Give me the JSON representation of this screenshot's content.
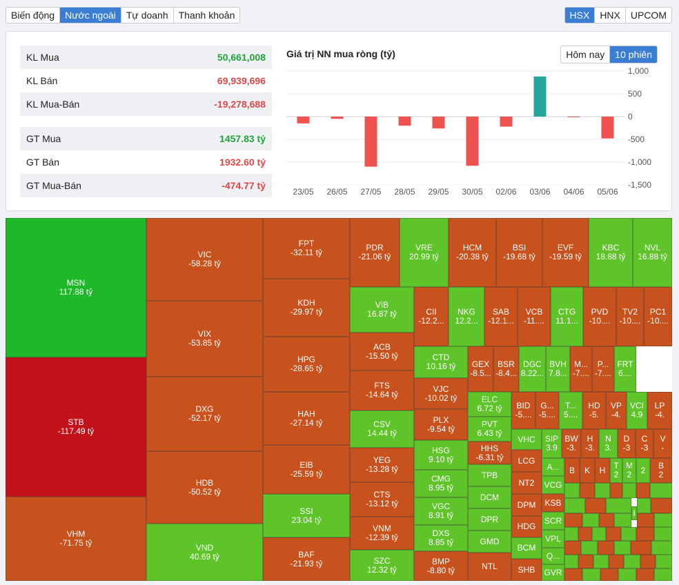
{
  "tabs_left": [
    {
      "label": "Biến động",
      "active": false
    },
    {
      "label": "Nước ngoài",
      "active": true
    },
    {
      "label": "Tự doanh",
      "active": false
    },
    {
      "label": "Thanh khoản",
      "active": false
    }
  ],
  "tabs_right": [
    {
      "label": "HSX",
      "active": true
    },
    {
      "label": "HNX",
      "active": false
    },
    {
      "label": "UPCOM",
      "active": false
    }
  ],
  "stats": [
    {
      "label": "KL Mua",
      "value": "50,661,008",
      "tone": "pos"
    },
    {
      "label": "KL Bán",
      "value": "69,939,696",
      "tone": "neg"
    },
    {
      "label": "KL Mua-Bán",
      "value": "-19,278,688",
      "tone": "neg"
    },
    {
      "label": "GT Mua",
      "value": "1457.83 tỷ",
      "tone": "pos"
    },
    {
      "label": "GT Bán",
      "value": "1932.60 tỷ",
      "tone": "neg"
    },
    {
      "label": "GT Mua-Bán",
      "value": "-474.77 tỷ",
      "tone": "neg"
    }
  ],
  "chart_title": "Giá trị NN mua ròng (tỷ)",
  "range_tabs": [
    {
      "label": "Hôm nay",
      "active": false
    },
    {
      "label": "10 phiên",
      "active": true
    }
  ],
  "colors": {
    "accent": "#3a7ed4",
    "positive_bar": "#26a69a",
    "negative_bar": "#ef5350",
    "up_strong": "#1fb82a",
    "up": "#5fc42a",
    "down": "#c8521e",
    "down_strong": "#c4121b"
  },
  "chart_data": {
    "type": "bar",
    "title": "Giá trị NN mua ròng (tỷ)",
    "categories": [
      "23/05",
      "26/05",
      "27/05",
      "28/05",
      "29/05",
      "30/05",
      "02/06",
      "03/06",
      "04/06",
      "05/06"
    ],
    "values": [
      -150,
      -50,
      -1100,
      -200,
      -260,
      -1080,
      -220,
      880,
      -10,
      -480
    ],
    "yticks": [
      "1,000",
      "500",
      "0",
      "-500",
      "-1,000",
      "-1,500"
    ],
    "ylim": [
      -1500,
      1000
    ],
    "grid": true
  },
  "heatmap_tiles": [
    {
      "sym": "MSN",
      "val": "117.88 tỷ",
      "tone": "up_strong"
    },
    {
      "sym": "STB",
      "val": "-117.49 tỷ",
      "tone": "down_strong"
    },
    {
      "sym": "VHM",
      "val": "-71.75 tỷ",
      "tone": "down"
    },
    {
      "sym": "VIC",
      "val": "-58.28 tỷ",
      "tone": "down"
    },
    {
      "sym": "VIX",
      "val": "-53.85 tỷ",
      "tone": "down"
    },
    {
      "sym": "DXG",
      "val": "-52.17 tỷ",
      "tone": "down"
    },
    {
      "sym": "HDB",
      "val": "-50.52 tỷ",
      "tone": "down"
    },
    {
      "sym": "VND",
      "val": "40.69 tỷ",
      "tone": "up"
    },
    {
      "sym": "FPT",
      "val": "-32.11 tỷ",
      "tone": "down"
    },
    {
      "sym": "KDH",
      "val": "-29.97 tỷ",
      "tone": "down"
    },
    {
      "sym": "HPG",
      "val": "-28.65 tỷ",
      "tone": "down"
    },
    {
      "sym": "HAH",
      "val": "-27.14 tỷ",
      "tone": "down"
    },
    {
      "sym": "EIB",
      "val": "-25.59 tỷ",
      "tone": "down"
    },
    {
      "sym": "SSI",
      "val": "23.04 tỷ",
      "tone": "up"
    },
    {
      "sym": "BAF",
      "val": "-21.93 tỷ",
      "tone": "down"
    },
    {
      "sym": "PDR",
      "val": "-21.06 tỷ",
      "tone": "down"
    },
    {
      "sym": "VRE",
      "val": "20.99 tỷ",
      "tone": "up"
    },
    {
      "sym": "HCM",
      "val": "-20.38 tỷ",
      "tone": "down"
    },
    {
      "sym": "BSI",
      "val": "-19.68 tỷ",
      "tone": "down"
    },
    {
      "sym": "EVF",
      "val": "-19.59 tỷ",
      "tone": "down"
    },
    {
      "sym": "KBC",
      "val": "18.88 tỷ",
      "tone": "up"
    },
    {
      "sym": "NVL",
      "val": "16.88 tỷ",
      "tone": "up"
    },
    {
      "sym": "VIB",
      "val": "16.87 tỷ",
      "tone": "up"
    },
    {
      "sym": "CII",
      "val": "-12.2...",
      "tone": "down"
    },
    {
      "sym": "NKG",
      "val": "12.2...",
      "tone": "up"
    },
    {
      "sym": "SAB",
      "val": "-12.1...",
      "tone": "down"
    },
    {
      "sym": "VCB",
      "val": "-11....",
      "tone": "down"
    },
    {
      "sym": "CTG",
      "val": "11.1...",
      "tone": "up"
    },
    {
      "sym": "PVD",
      "val": "-10....",
      "tone": "down"
    },
    {
      "sym": "TV2",
      "val": "-10....",
      "tone": "down"
    },
    {
      "sym": "PC1",
      "val": "-10....",
      "tone": "down"
    },
    {
      "sym": "ACB",
      "val": "-15.50 tỷ",
      "tone": "down"
    },
    {
      "sym": "FTS",
      "val": "-14.64 tỷ",
      "tone": "down"
    },
    {
      "sym": "CSV",
      "val": "14.44 tỷ",
      "tone": "up"
    },
    {
      "sym": "YEG",
      "val": "-13.28 tỷ",
      "tone": "down"
    },
    {
      "sym": "CTS",
      "val": "-13.12 tỷ",
      "tone": "down"
    },
    {
      "sym": "VNM",
      "val": "-12.39 tỷ",
      "tone": "down"
    },
    {
      "sym": "SZC",
      "val": "12.32 tỷ",
      "tone": "up"
    },
    {
      "sym": "CTD",
      "val": "10.16 tỷ",
      "tone": "up"
    },
    {
      "sym": "VJC",
      "val": "-10.02 tỷ",
      "tone": "down"
    },
    {
      "sym": "PLX",
      "val": "-9.54 tỷ",
      "tone": "down"
    },
    {
      "sym": "HSG",
      "val": "9.10 tỷ",
      "tone": "up"
    },
    {
      "sym": "CMG",
      "val": "8.95 tỷ",
      "tone": "up"
    },
    {
      "sym": "VGC",
      "val": "8.91 tỷ",
      "tone": "up"
    },
    {
      "sym": "DXS",
      "val": "8.85 tỷ",
      "tone": "up"
    },
    {
      "sym": "BMP",
      "val": "-8.80 tỷ",
      "tone": "down"
    },
    {
      "sym": "GEX",
      "val": "-8.5...",
      "tone": "down"
    },
    {
      "sym": "BSR",
      "val": "-8.4...",
      "tone": "down"
    },
    {
      "sym": "DGC",
      "val": "8.22...",
      "tone": "up"
    },
    {
      "sym": "BVH",
      "val": "7.8...",
      "tone": "up"
    },
    {
      "sym": "M...",
      "val": "-7....",
      "tone": "down"
    },
    {
      "sym": "P...",
      "val": "-7....",
      "tone": "down"
    },
    {
      "sym": "FRT",
      "val": "6....",
      "tone": "up"
    },
    {
      "sym": "ELC",
      "val": "6.72 tỷ",
      "tone": "up"
    },
    {
      "sym": "PVT",
      "val": "6.43 tỷ",
      "tone": "up"
    },
    {
      "sym": "HHS",
      "val": "-6.31 tỷ",
      "tone": "down"
    },
    {
      "sym": "TPB",
      "val": "",
      "tone": "up"
    },
    {
      "sym": "DCM",
      "val": "",
      "tone": "up"
    },
    {
      "sym": "DPR",
      "val": "",
      "tone": "up"
    },
    {
      "sym": "GMD",
      "val": "",
      "tone": "up"
    },
    {
      "sym": "NTL",
      "val": "",
      "tone": "down"
    },
    {
      "sym": "BID",
      "val": "-5....",
      "tone": "down"
    },
    {
      "sym": "G...",
      "val": "-5....",
      "tone": "down"
    },
    {
      "sym": "T...",
      "val": "5....",
      "tone": "up"
    },
    {
      "sym": "HD",
      "val": "-5.",
      "tone": "down"
    },
    {
      "sym": "VP",
      "val": "-4.",
      "tone": "down"
    },
    {
      "sym": "VCI",
      "val": "4.9",
      "tone": "up"
    },
    {
      "sym": "LP",
      "val": "-4.",
      "tone": "down"
    },
    {
      "sym": "VHC",
      "val": "",
      "tone": "up"
    },
    {
      "sym": "LCG",
      "val": "",
      "tone": "down"
    },
    {
      "sym": "NT2",
      "val": "",
      "tone": "down"
    },
    {
      "sym": "DPM",
      "val": "",
      "tone": "down"
    },
    {
      "sym": "HDG",
      "val": "",
      "tone": "down"
    },
    {
      "sym": "BCM",
      "val": "",
      "tone": "up"
    },
    {
      "sym": "SHB",
      "val": "",
      "tone": "down"
    },
    {
      "sym": "SIP",
      "val": "3.9",
      "tone": "up"
    },
    {
      "sym": "BW",
      "val": "-3.",
      "tone": "down"
    },
    {
      "sym": "H",
      "val": "-3.",
      "tone": "down"
    },
    {
      "sym": "N",
      "val": "3.",
      "tone": "up"
    },
    {
      "sym": "D",
      "val": "-3",
      "tone": "down"
    },
    {
      "sym": "C",
      "val": "-3",
      "tone": "down"
    },
    {
      "sym": "V",
      "val": "-",
      "tone": "down"
    },
    {
      "sym": "A...",
      "val": "",
      "tone": "up"
    },
    {
      "sym": "B",
      "val": "",
      "tone": "down"
    },
    {
      "sym": "K",
      "val": "",
      "tone": "down"
    },
    {
      "sym": "H",
      "val": "",
      "tone": "down"
    },
    {
      "sym": "T",
      "val": "2",
      "tone": "up"
    },
    {
      "sym": "M",
      "val": "2",
      "tone": "up"
    },
    {
      "sym": "2",
      "val": "",
      "tone": "up"
    },
    {
      "sym": "B",
      "val": "2",
      "tone": "down"
    },
    {
      "sym": "VCG",
      "val": "",
      "tone": "up"
    },
    {
      "sym": "KSB",
      "val": "",
      "tone": "down"
    },
    {
      "sym": "SCR",
      "val": "",
      "tone": "up"
    },
    {
      "sym": "VPL",
      "val": "",
      "tone": "up"
    },
    {
      "sym": "Q...",
      "val": "",
      "tone": "up"
    },
    {
      "sym": "GVR",
      "val": "",
      "tone": "up"
    },
    {
      "sym": "I",
      "val": "",
      "tone": "up"
    }
  ]
}
